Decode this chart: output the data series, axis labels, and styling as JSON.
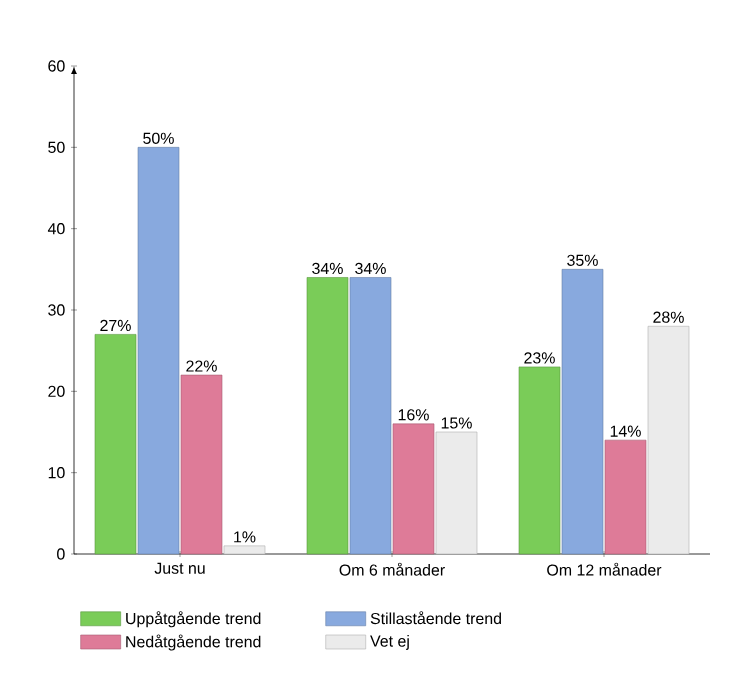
{
  "chart_data": {
    "type": "bar",
    "categories": [
      "Just nu",
      "Om 6 månader",
      "Om 12 månader"
    ],
    "series": [
      {
        "name": "Uppåtgående trend",
        "color": "#7acc58",
        "values": [
          27,
          34,
          23
        ],
        "value_labels": [
          "27%",
          "34%",
          "23%"
        ]
      },
      {
        "name": "Stillastående trend",
        "color": "#88a9de",
        "values": [
          50,
          34,
          35
        ],
        "value_labels": [
          "50%",
          "34%",
          "35%"
        ]
      },
      {
        "name": "Nedåtgående trend",
        "color": "#de7b98",
        "values": [
          22,
          16,
          14
        ],
        "value_labels": [
          "22%",
          "16%",
          "14%"
        ]
      },
      {
        "name": "Vet ej",
        "color": "#ebebeb",
        "values": [
          1,
          15,
          28
        ],
        "value_labels": [
          "1%",
          "15%",
          "28%"
        ]
      }
    ],
    "ylim": [
      0,
      60
    ],
    "yticks": [
      0,
      10,
      20,
      30,
      40,
      50,
      60
    ],
    "grid": false,
    "legend": "bottom"
  }
}
